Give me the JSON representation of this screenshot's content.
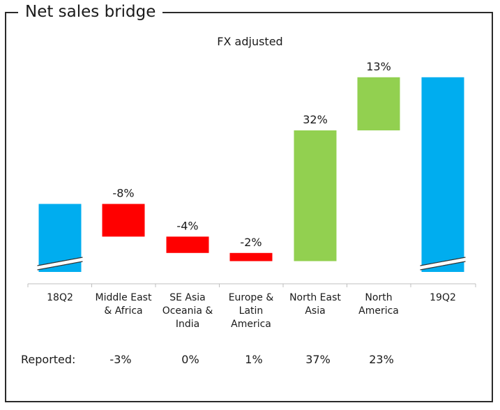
{
  "title": "Net sales bridge",
  "subtitle": "FX adjusted",
  "reported_label": "Reported:",
  "colors": {
    "base": "#00ADEF",
    "negative": "#FF0000",
    "positive": "#92D050",
    "axis": "#BFBFBF",
    "frame": "#2A2A2A"
  },
  "chart_data": {
    "type": "bar",
    "subtype": "waterfall",
    "title": "Net sales bridge",
    "subtitle": "FX adjusted",
    "categories": [
      "18Q2",
      "Middle East & Africa",
      "SE Asia Oceania & India",
      "Europe & Latin America",
      "North East Asia",
      "North America",
      "19Q2"
    ],
    "category_lines": [
      [
        "18Q2"
      ],
      [
        "Middle East",
        "& Africa"
      ],
      [
        "SE Asia",
        "Oceania &",
        "India"
      ],
      [
        "Europe &",
        "Latin",
        "America"
      ],
      [
        "North East",
        "Asia"
      ],
      [
        "North",
        "America"
      ],
      [
        "19Q2"
      ]
    ],
    "bars": [
      {
        "category": "18Q2",
        "kind": "total",
        "start": 0,
        "end": 100,
        "label": ""
      },
      {
        "category": "Middle East & Africa",
        "kind": "decrease",
        "start": 100,
        "end": 92,
        "label": "-8%"
      },
      {
        "category": "SE Asia Oceania & India",
        "kind": "decrease",
        "start": 92,
        "end": 88,
        "label": "-4%"
      },
      {
        "category": "Europe & Latin America",
        "kind": "decrease",
        "start": 88,
        "end": 86,
        "label": "-2%"
      },
      {
        "category": "North East Asia",
        "kind": "increase",
        "start": 86,
        "end": 118,
        "label": "32%"
      },
      {
        "category": "North America",
        "kind": "increase",
        "start": 118,
        "end": 131,
        "label": "13%"
      },
      {
        "category": "19Q2",
        "kind": "total",
        "start": 0,
        "end": 131,
        "label": ""
      }
    ],
    "axis_break": true,
    "reported": [
      "",
      "-3%",
      "0%",
      "1%",
      "37%",
      "23%",
      ""
    ]
  }
}
